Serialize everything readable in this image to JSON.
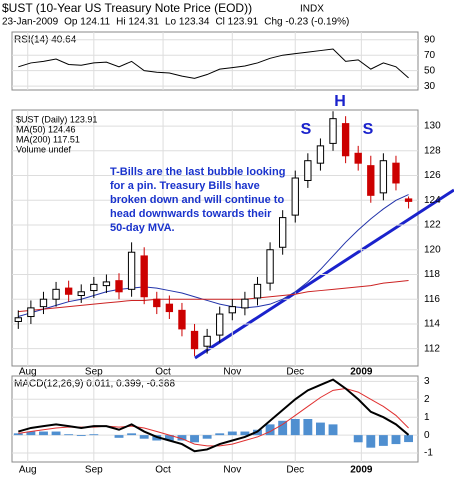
{
  "chart_data": {
    "type": "candlestick",
    "title": "$UST (10-Year US Treasury Note Price (EOD))",
    "exchange": "INDX",
    "quote": [
      "23-Jan-2009",
      "Op 124.11",
      "Hi 124.31",
      "Lo 123.34",
      "Cl 123.91",
      "Chg -0.23 (-0.19%)"
    ],
    "legend": [
      "$UST (Daily) 123.91",
      "MA(50) 124.46",
      "MA(200) 117.51",
      "Volume undef"
    ],
    "annotation": [
      "T-Bills are the last bubble looking",
      "for a pin.  Treasury Bills have",
      "broken down and will continue to",
      "head downwards towards their",
      "50-day MVA."
    ],
    "pattern_labels": [
      "S",
      "H",
      "S"
    ],
    "x": [
      0,
      4,
      8,
      12,
      16,
      20,
      24,
      28,
      32,
      36,
      40,
      44,
      48,
      52,
      56,
      60,
      64,
      68,
      72,
      76,
      80,
      84,
      88,
      92,
      96,
      100,
      104,
      108,
      112,
      116,
      120,
      124
    ],
    "xlim": [
      -2,
      127
    ],
    "xticks": [
      {
        "value": 3,
        "label": "Aug"
      },
      {
        "value": 24,
        "label": "Sep"
      },
      {
        "value": 46,
        "label": "Oct"
      },
      {
        "value": 68,
        "label": "Nov"
      },
      {
        "value": 88,
        "label": "Dec"
      },
      {
        "value": 109,
        "label": "2009"
      }
    ],
    "open": [
      114.2,
      114.6,
      115.4,
      116.0,
      116.9,
      116.3,
      116.7,
      117.1,
      117.5,
      116.8,
      119.5,
      116.0,
      115.6,
      115.1,
      113.4,
      112.2,
      113.1,
      114.9,
      115.3,
      116.1,
      117.3,
      120.2,
      122.8,
      125.6,
      127.0,
      128.6,
      130.2,
      127.8,
      126.8,
      124.6,
      127.0,
      124.11
    ],
    "high": [
      115.1,
      115.9,
      116.6,
      117.4,
      117.5,
      117.2,
      117.8,
      118.0,
      118.1,
      120.6,
      120.2,
      116.6,
      116.3,
      115.7,
      114.0,
      113.6,
      115.4,
      116.0,
      116.6,
      117.8,
      120.6,
      123.2,
      126.4,
      127.8,
      129.0,
      131.2,
      130.8,
      128.4,
      127.6,
      127.8,
      127.6,
      124.31
    ],
    "low": [
      113.6,
      114.0,
      114.8,
      115.4,
      115.8,
      115.7,
      116.1,
      116.5,
      116.0,
      116.2,
      115.6,
      114.8,
      114.4,
      113.0,
      111.4,
      111.6,
      112.5,
      114.3,
      114.7,
      115.5,
      116.7,
      119.6,
      122.2,
      125.0,
      126.4,
      128.0,
      127.0,
      126.4,
      123.8,
      124.0,
      124.8,
      123.34
    ],
    "close": [
      114.5,
      115.3,
      116.0,
      116.8,
      116.4,
      116.6,
      117.2,
      117.4,
      116.6,
      119.8,
      116.2,
      115.4,
      115.0,
      113.6,
      112.0,
      113.0,
      114.8,
      115.4,
      116.0,
      117.2,
      120.0,
      122.6,
      125.8,
      127.2,
      128.4,
      130.6,
      127.6,
      127.0,
      124.4,
      127.2,
      125.4,
      123.91
    ],
    "series": [
      {
        "name": "MA(50)",
        "color": "#2233aa",
        "values": [
          114.6,
          114.9,
          115.2,
          115.5,
          115.8,
          116.0,
          116.3,
          116.6,
          116.8,
          116.9,
          117.0,
          116.9,
          116.7,
          116.5,
          116.2,
          115.9,
          115.6,
          115.4,
          115.3,
          115.4,
          115.6,
          116.0,
          116.6,
          117.4,
          118.4,
          119.5,
          120.6,
          121.6,
          122.5,
          123.3,
          124.0,
          124.46
        ]
      },
      {
        "name": "MA(200)",
        "color": "#cc2222",
        "values": [
          115.0,
          115.1,
          115.2,
          115.3,
          115.4,
          115.5,
          115.6,
          115.7,
          115.8,
          115.9,
          115.9,
          116.0,
          116.0,
          116.0,
          116.0,
          116.0,
          116.0,
          116.0,
          116.0,
          116.1,
          116.2,
          116.3,
          116.4,
          116.6,
          116.7,
          116.8,
          116.9,
          117.0,
          117.1,
          117.3,
          117.4,
          117.51
        ]
      }
    ],
    "ylim": [
      110.6,
      131.3
    ],
    "yticks": [
      112,
      114,
      116,
      118,
      120,
      122,
      124,
      126,
      128,
      130
    ],
    "rsi": {
      "label": "RSI(14) 40.64",
      "color": "#000000",
      "values": [
        55,
        60,
        62,
        65,
        58,
        57,
        60,
        61,
        55,
        62,
        50,
        48,
        47,
        43,
        40,
        45,
        52,
        54,
        56,
        60,
        66,
        70,
        72,
        74,
        76,
        78,
        62,
        64,
        52,
        60,
        55,
        40.64
      ],
      "ylim": [
        25,
        100
      ],
      "yticks": [
        90,
        70,
        50,
        30
      ]
    },
    "macd": {
      "label": "MACD(12,26,9) 0.011, 0.399, -0.388",
      "ylim": [
        -1.5,
        3.3
      ],
      "yticks": [
        3,
        2,
        1,
        0,
        -1
      ],
      "macd": [
        0.2,
        0.4,
        0.5,
        0.6,
        0.5,
        0.4,
        0.5,
        0.5,
        0.3,
        0.6,
        0.2,
        -0.1,
        -0.3,
        -0.5,
        -0.9,
        -0.8,
        -0.5,
        -0.3,
        -0.1,
        0.2,
        0.8,
        1.4,
        2.0,
        2.5,
        2.8,
        3.1,
        2.6,
        2.0,
        1.3,
        1.0,
        0.6,
        0.011
      ],
      "signal": [
        0.1,
        0.2,
        0.3,
        0.4,
        0.45,
        0.45,
        0.45,
        0.5,
        0.45,
        0.5,
        0.4,
        0.2,
        0.0,
        -0.2,
        -0.5,
        -0.6,
        -0.6,
        -0.5,
        -0.3,
        -0.1,
        0.2,
        0.6,
        1.1,
        1.6,
        2.1,
        2.5,
        2.6,
        2.4,
        2.0,
        1.6,
        1.1,
        0.399
      ],
      "histogram": [
        0.1,
        0.2,
        0.2,
        0.2,
        0.05,
        -0.05,
        0.05,
        0,
        -0.15,
        0.1,
        -0.2,
        -0.3,
        -0.3,
        -0.3,
        -0.4,
        -0.2,
        0.1,
        0.2,
        0.2,
        0.3,
        0.6,
        0.8,
        0.9,
        0.9,
        0.7,
        0.6,
        0,
        -0.4,
        -0.7,
        -0.6,
        -0.5,
        -0.388
      ]
    }
  }
}
